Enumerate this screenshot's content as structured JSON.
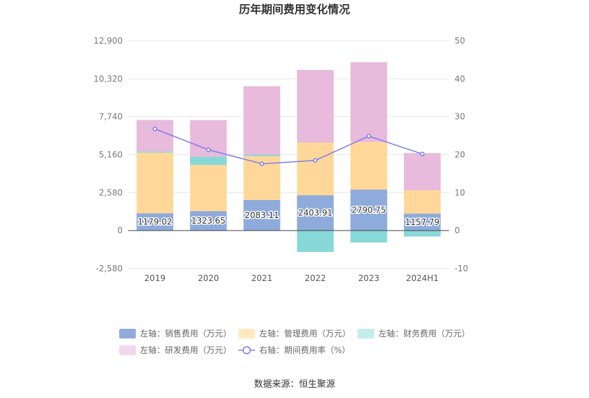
{
  "chart_data": {
    "type": "bar",
    "title": "历年期间费用变化情况",
    "categories": [
      "2019",
      "2020",
      "2021",
      "2022",
      "2023",
      "2024H1"
    ],
    "left_axis": {
      "ticks": [
        -2580,
        0,
        2580,
        5160,
        7740,
        10320,
        12900
      ],
      "tick_labels": [
        "-2,580",
        "0",
        "2,580",
        "5,160",
        "7,740",
        "10,320",
        "12,900"
      ],
      "ylim": [
        -2580,
        12900
      ]
    },
    "right_axis": {
      "ticks": [
        -10,
        0,
        10,
        20,
        30,
        40,
        50
      ],
      "tick_labels": [
        "-10",
        "0",
        "10",
        "20",
        "30",
        "40",
        "50"
      ],
      "ylim": [
        -10,
        50
      ]
    },
    "series": [
      {
        "name": "左轴：销售费用（万元）",
        "axis": "left",
        "kind": "bar",
        "color": "#8eabdb",
        "values": [
          1179.02,
          1323.65,
          2083.11,
          2403.91,
          2790.75,
          1157.79
        ],
        "value_labels": [
          "1179.02",
          "1323.65",
          "2083.11",
          "2403.91",
          "2790.75",
          "1157.79"
        ]
      },
      {
        "name": "左轴：管理费用（万元）",
        "axis": "left",
        "kind": "bar",
        "color": "#ffd899",
        "values": [
          4120,
          3140,
          2980,
          3580,
          3230,
          1580
        ]
      },
      {
        "name": "左轴：财务费用（万元）",
        "axis": "left",
        "kind": "bar",
        "color": "#88d8d8",
        "values": [
          80,
          570,
          100,
          -1450,
          -810,
          -400
        ]
      },
      {
        "name": "左轴：研发费用（万元）",
        "axis": "left",
        "kind": "bar",
        "color": "#e8badb",
        "values": [
          2140,
          2480,
          4650,
          4940,
          5430,
          2530
        ]
      },
      {
        "name": "右轴：期间费用率（%）",
        "axis": "right",
        "kind": "line",
        "color": "#7b7bef",
        "values": [
          26.8,
          21.3,
          17.6,
          18.5,
          24.9,
          20.2
        ]
      }
    ],
    "legend_placement": "bottom",
    "grid": true
  },
  "source": "数据来源：恒生聚源"
}
